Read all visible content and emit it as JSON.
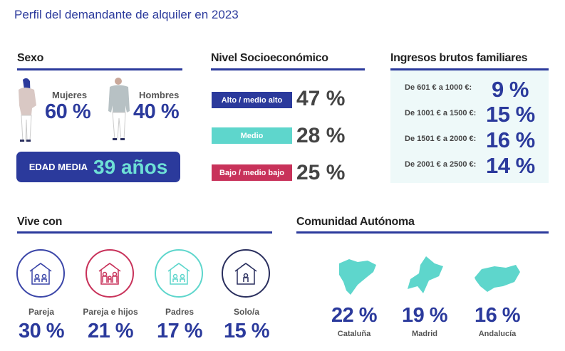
{
  "title": "Perfil del demandante de alquiler en 2023",
  "colors": {
    "primary": "#2b3a9c",
    "teal": "#5ed6cc",
    "red": "#c8325a",
    "navy": "#2a2f5e",
    "panel": "#eef9f9"
  },
  "sexo": {
    "header": "Sexo",
    "mujeres_label": "Mujeres",
    "mujeres_value": "60 %",
    "hombres_label": "Hombres",
    "hombres_value": "40 %",
    "edad_label": "EDAD MEDIA",
    "edad_value": "39 años"
  },
  "nivel": {
    "header": "Nivel Socioeconómico",
    "items": [
      {
        "label": "Alto / medio alto",
        "value": "47 %",
        "color": "#2b3a9c"
      },
      {
        "label": "Medio",
        "value": "28 %",
        "color": "#5ed6cc"
      },
      {
        "label": "Bajo / medio bajo",
        "value": "25 %",
        "color": "#c8325a"
      }
    ]
  },
  "ingresos": {
    "header": "Ingresos brutos familiares",
    "items": [
      {
        "label": "De 601 € a 1000 €:",
        "value": "9 %"
      },
      {
        "label": "De 1001 € a 1500 €:",
        "value": "15 %"
      },
      {
        "label": "De 1501 € a 2000 €:",
        "value": "16 %"
      },
      {
        "label": "De 2001 € a 2500 €:",
        "value": "14 %"
      }
    ]
  },
  "vive": {
    "header": "Vive con",
    "items": [
      {
        "label": "Pareja",
        "value": "30 %",
        "icon": "house-couple-icon",
        "color": "#3b46a8"
      },
      {
        "label": "Pareja e hijos",
        "value": "21 %",
        "icon": "house-family-icon",
        "color": "#c8325a"
      },
      {
        "label": "Padres",
        "value": "17 %",
        "icon": "house-parents-icon",
        "color": "#5ed6cc"
      },
      {
        "label": "Solo/a",
        "value": "15 %",
        "icon": "house-single-icon",
        "color": "#2a2f5e"
      }
    ]
  },
  "comunidad": {
    "header": "Comunidad Autónoma",
    "items": [
      {
        "label": "Cataluña",
        "value": "22 %",
        "icon": "cataluna-map-icon"
      },
      {
        "label": "Madrid",
        "value": "19 %",
        "icon": "madrid-map-icon"
      },
      {
        "label": "Andalucía",
        "value": "16 %",
        "icon": "andalucia-map-icon"
      }
    ]
  }
}
